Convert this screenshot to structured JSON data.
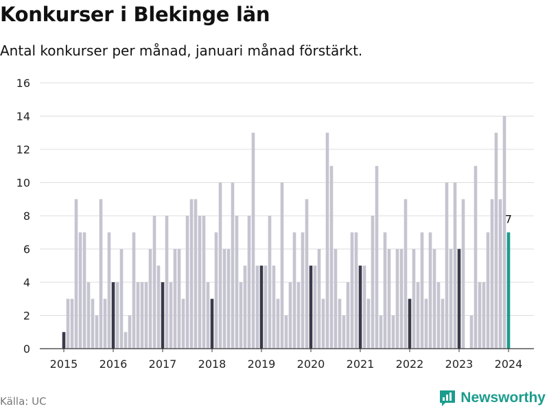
{
  "header": {
    "title": "Konkurser i Blekinge län",
    "subtitle": "Antal konkurser per månad, januari månad förstärkt."
  },
  "footer": {
    "source": "Källa: UC",
    "brand": "Newsworthy"
  },
  "colors": {
    "bar": "#c5c4d0",
    "january": "#3a3a4b",
    "latest": "#1b9c8c",
    "grid": "#dddddd"
  },
  "chart_data": {
    "type": "bar",
    "title": "Konkurser i Blekinge län",
    "subtitle": "Antal konkurser per månad, januari månad förstärkt.",
    "xlabel": "",
    "ylabel": "",
    "ylim": [
      0,
      16
    ],
    "yticks": [
      0,
      2,
      4,
      6,
      8,
      10,
      12,
      14,
      16
    ],
    "xticks": [
      "2015",
      "2016",
      "2017",
      "2018",
      "2019",
      "2020",
      "2021",
      "2022",
      "2023",
      "2024"
    ],
    "start": "2015-01",
    "highlight": "January",
    "latest_label": "7",
    "values": [
      1,
      3,
      3,
      9,
      7,
      7,
      4,
      3,
      2,
      9,
      3,
      7,
      4,
      4,
      6,
      1,
      2,
      7,
      4,
      4,
      4,
      6,
      8,
      5,
      4,
      8,
      4,
      6,
      6,
      3,
      8,
      9,
      9,
      8,
      8,
      4,
      3,
      7,
      10,
      6,
      6,
      10,
      8,
      4,
      5,
      8,
      13,
      5,
      5,
      5,
      8,
      5,
      3,
      10,
      2,
      4,
      7,
      4,
      7,
      9,
      5,
      5,
      6,
      3,
      13,
      11,
      6,
      3,
      2,
      4,
      7,
      7,
      5,
      5,
      3,
      8,
      11,
      2,
      7,
      6,
      2,
      6,
      6,
      9,
      3,
      6,
      4,
      7,
      3,
      7,
      6,
      4,
      3,
      10,
      6,
      10,
      6,
      9,
      0,
      2,
      11,
      4,
      4,
      7,
      9,
      13,
      9,
      14,
      7
    ]
  }
}
